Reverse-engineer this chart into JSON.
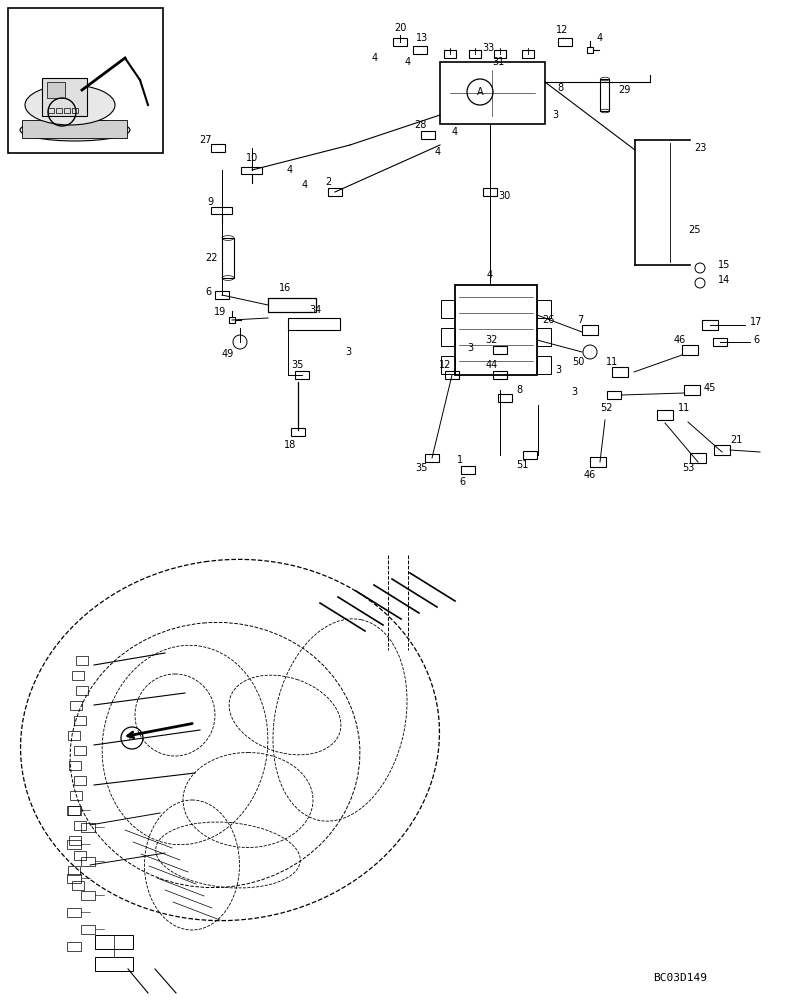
{
  "background_color": "#ffffff",
  "line_color": "#000000",
  "figure_code": "BC03D149"
}
